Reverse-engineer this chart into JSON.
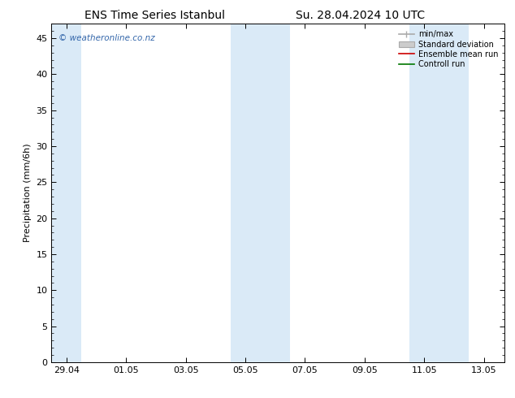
{
  "title_left": "ENS Time Series Istanbul",
  "title_right": "Su. 28.04.2024 10 UTC",
  "ylabel": "Precipitation (mm/6h)",
  "ylim": [
    0,
    47
  ],
  "yticks": [
    0,
    5,
    10,
    15,
    20,
    25,
    30,
    35,
    40,
    45
  ],
  "xtick_labels": [
    "29.04",
    "01.05",
    "03.05",
    "05.05",
    "07.05",
    "09.05",
    "11.05",
    "13.05"
  ],
  "xtick_positions": [
    0,
    2,
    4,
    6,
    8,
    10,
    12,
    14
  ],
  "xlim": [
    -0.5,
    14.7
  ],
  "shaded_regions": [
    {
      "x_start": -0.5,
      "x_end": 0.5,
      "color": "#daeaf7"
    },
    {
      "x_start": 5.5,
      "x_end": 7.5,
      "color": "#daeaf7"
    },
    {
      "x_start": 11.5,
      "x_end": 13.5,
      "color": "#daeaf7"
    }
  ],
  "watermark": "© weatheronline.co.nz",
  "watermark_color": "#3366aa",
  "background_color": "#ffffff",
  "title_fontsize": 10,
  "axis_fontsize": 8,
  "tick_fontsize": 8,
  "legend_fontsize": 7
}
